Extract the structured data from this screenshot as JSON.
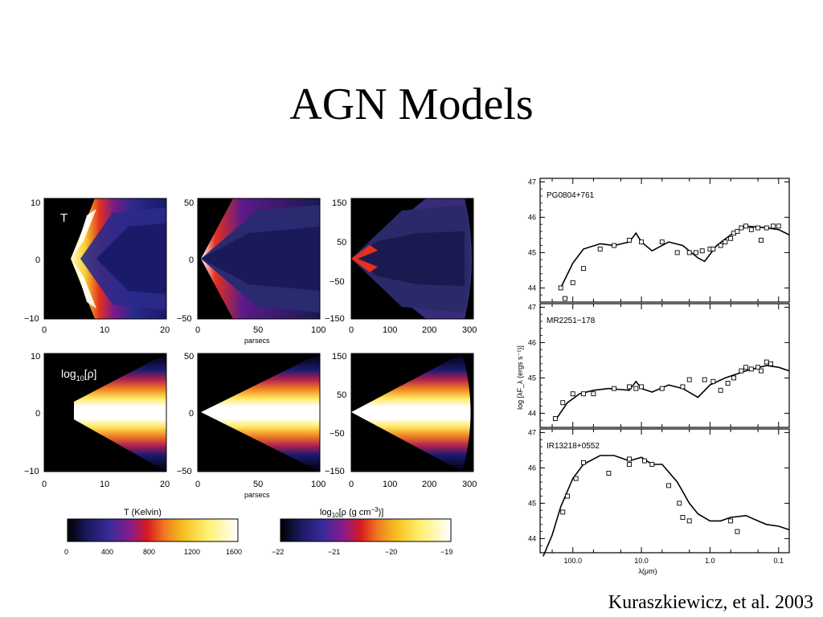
{
  "slide": {
    "title": "AGN Models",
    "citation": "Kuraszkiewicz, et al. 2003"
  },
  "model_maps": {
    "rows": [
      {
        "label": "T",
        "quantity": "temperature"
      },
      {
        "label_main": "log",
        "label_sub": "10",
        "label_rest": "[ρ]",
        "quantity": "density"
      }
    ],
    "panels": [
      {
        "x_ticks": [
          "0",
          "10",
          "20"
        ],
        "y_ticks": [
          "10",
          "0",
          "−10"
        ],
        "xlabel": ""
      },
      {
        "x_ticks": [
          "0",
          "50",
          "100"
        ],
        "y_ticks": [
          "50",
          "0",
          "−50"
        ],
        "xlabel": "parsecs"
      },
      {
        "x_ticks": [
          "0",
          "100",
          "200",
          "300"
        ],
        "y_ticks": [
          "150",
          "50",
          "−50",
          "−150"
        ],
        "xlabel": ""
      }
    ],
    "colorbars": [
      {
        "title": "T (Kelvin)",
        "ticks": [
          "0",
          "400",
          "800",
          "1200",
          "1600"
        ]
      },
      {
        "title_main": "log",
        "title_sub": "10",
        "title_rest": "[ρ (g cm",
        "title_sup": "−3",
        "title_end": ")]",
        "ticks": [
          "−22",
          "−21",
          "−20",
          "−19"
        ]
      }
    ]
  },
  "chart_data": [
    {
      "type": "scatter",
      "title": "PG0804+761",
      "xlabel": "λ(μm)",
      "ylabel": "log [λF_λ (ergs s⁻¹)]",
      "x_scale": "log-reversed",
      "xlim": [
        300,
        0.07
      ],
      "ylim": [
        43.6,
        47.1
      ],
      "y_ticks": [
        "44",
        "45",
        "46",
        "47"
      ],
      "series": [
        {
          "kind": "model-line",
          "x": [
            150,
            100,
            70,
            40,
            25,
            15,
            12,
            10,
            7,
            4,
            2.5,
            1.5,
            1.2,
            0.8,
            0.5,
            0.3,
            0.15,
            0.1,
            0.07
          ],
          "y": [
            44.0,
            44.7,
            45.1,
            45.25,
            45.2,
            45.3,
            45.55,
            45.3,
            45.05,
            45.3,
            45.2,
            44.85,
            44.75,
            45.2,
            45.5,
            45.75,
            45.7,
            45.65,
            45.5
          ]
        },
        {
          "kind": "observed-points",
          "x": [
            150,
            130,
            100,
            70,
            40,
            25,
            15,
            10,
            5,
            3,
            2,
            1.6,
            1.3,
            1.0,
            0.9,
            0.7,
            0.6,
            0.5,
            0.45,
            0.4,
            0.35,
            0.3,
            0.25,
            0.2,
            0.18,
            0.15,
            0.12,
            0.1
          ],
          "y": [
            44.0,
            43.7,
            44.15,
            44.55,
            45.1,
            45.2,
            45.35,
            45.3,
            45.3,
            45.0,
            45.0,
            45.0,
            45.05,
            45.1,
            45.1,
            45.2,
            45.3,
            45.4,
            45.55,
            45.6,
            45.7,
            45.75,
            45.65,
            45.7,
            45.35,
            45.7,
            45.75,
            45.75
          ]
        }
      ]
    },
    {
      "type": "scatter",
      "title": "MR2251−178",
      "xlabel": "λ(μm)",
      "ylabel": "log [λF_λ (ergs s⁻¹)]",
      "x_scale": "log-reversed",
      "xlim": [
        300,
        0.07
      ],
      "ylim": [
        43.6,
        47.1
      ],
      "y_ticks": [
        "44",
        "45",
        "46",
        "47"
      ],
      "series": [
        {
          "kind": "model-line",
          "x": [
            180,
            120,
            80,
            50,
            30,
            15,
            12,
            10,
            7,
            4,
            2.5,
            1.5,
            1.0,
            0.6,
            0.3,
            0.15,
            0.1,
            0.07
          ],
          "y": [
            43.8,
            44.3,
            44.55,
            44.65,
            44.7,
            44.65,
            44.9,
            44.7,
            44.6,
            44.8,
            44.7,
            44.45,
            44.8,
            45.0,
            45.2,
            45.35,
            45.3,
            45.2
          ]
        },
        {
          "kind": "observed-points",
          "x": [
            180,
            140,
            100,
            70,
            50,
            25,
            15,
            12,
            10,
            5,
            2.5,
            2.0,
            1.2,
            0.9,
            0.7,
            0.55,
            0.45,
            0.35,
            0.3,
            0.25,
            0.2,
            0.18,
            0.15,
            0.13
          ],
          "y": [
            43.85,
            44.3,
            44.55,
            44.55,
            44.55,
            44.7,
            44.75,
            44.7,
            44.75,
            44.7,
            44.75,
            44.95,
            44.95,
            44.9,
            44.65,
            44.85,
            45.0,
            45.2,
            45.3,
            45.25,
            45.3,
            45.2,
            45.45,
            45.4
          ]
        }
      ]
    },
    {
      "type": "scatter",
      "title": "IR13218+0552",
      "xlabel": "λ(μm)",
      "ylabel": "log [λF_λ (ergs s⁻¹)]",
      "x_scale": "log-reversed",
      "xlim": [
        300,
        0.07
      ],
      "ylim": [
        43.6,
        47.1
      ],
      "x_ticks": [
        "100.0",
        "10.0",
        "1.0",
        "0.1"
      ],
      "y_ticks": [
        "44",
        "45",
        "46",
        "47"
      ],
      "series": [
        {
          "kind": "model-line",
          "x": [
            270,
            200,
            150,
            100,
            70,
            40,
            25,
            15,
            10,
            7,
            5,
            3,
            2,
            1.5,
            1.0,
            0.7,
            0.5,
            0.3,
            0.2,
            0.15,
            0.1,
            0.07
          ],
          "y": [
            43.5,
            44.1,
            44.9,
            45.7,
            46.1,
            46.35,
            46.35,
            46.2,
            46.3,
            46.1,
            46.1,
            45.6,
            45.0,
            44.7,
            44.5,
            44.5,
            44.6,
            44.65,
            44.5,
            44.4,
            44.35,
            44.25
          ]
        },
        {
          "kind": "observed-points",
          "x": [
            140,
            120,
            90,
            70,
            30,
            15,
            15,
            9,
            7,
            4,
            2.8,
            2.5,
            2.0,
            0.5,
            0.4
          ],
          "y": [
            44.75,
            45.2,
            45.7,
            46.15,
            45.85,
            46.1,
            46.25,
            46.2,
            46.1,
            45.5,
            45.0,
            44.6,
            44.5,
            44.5,
            44.2
          ]
        }
      ]
    }
  ]
}
